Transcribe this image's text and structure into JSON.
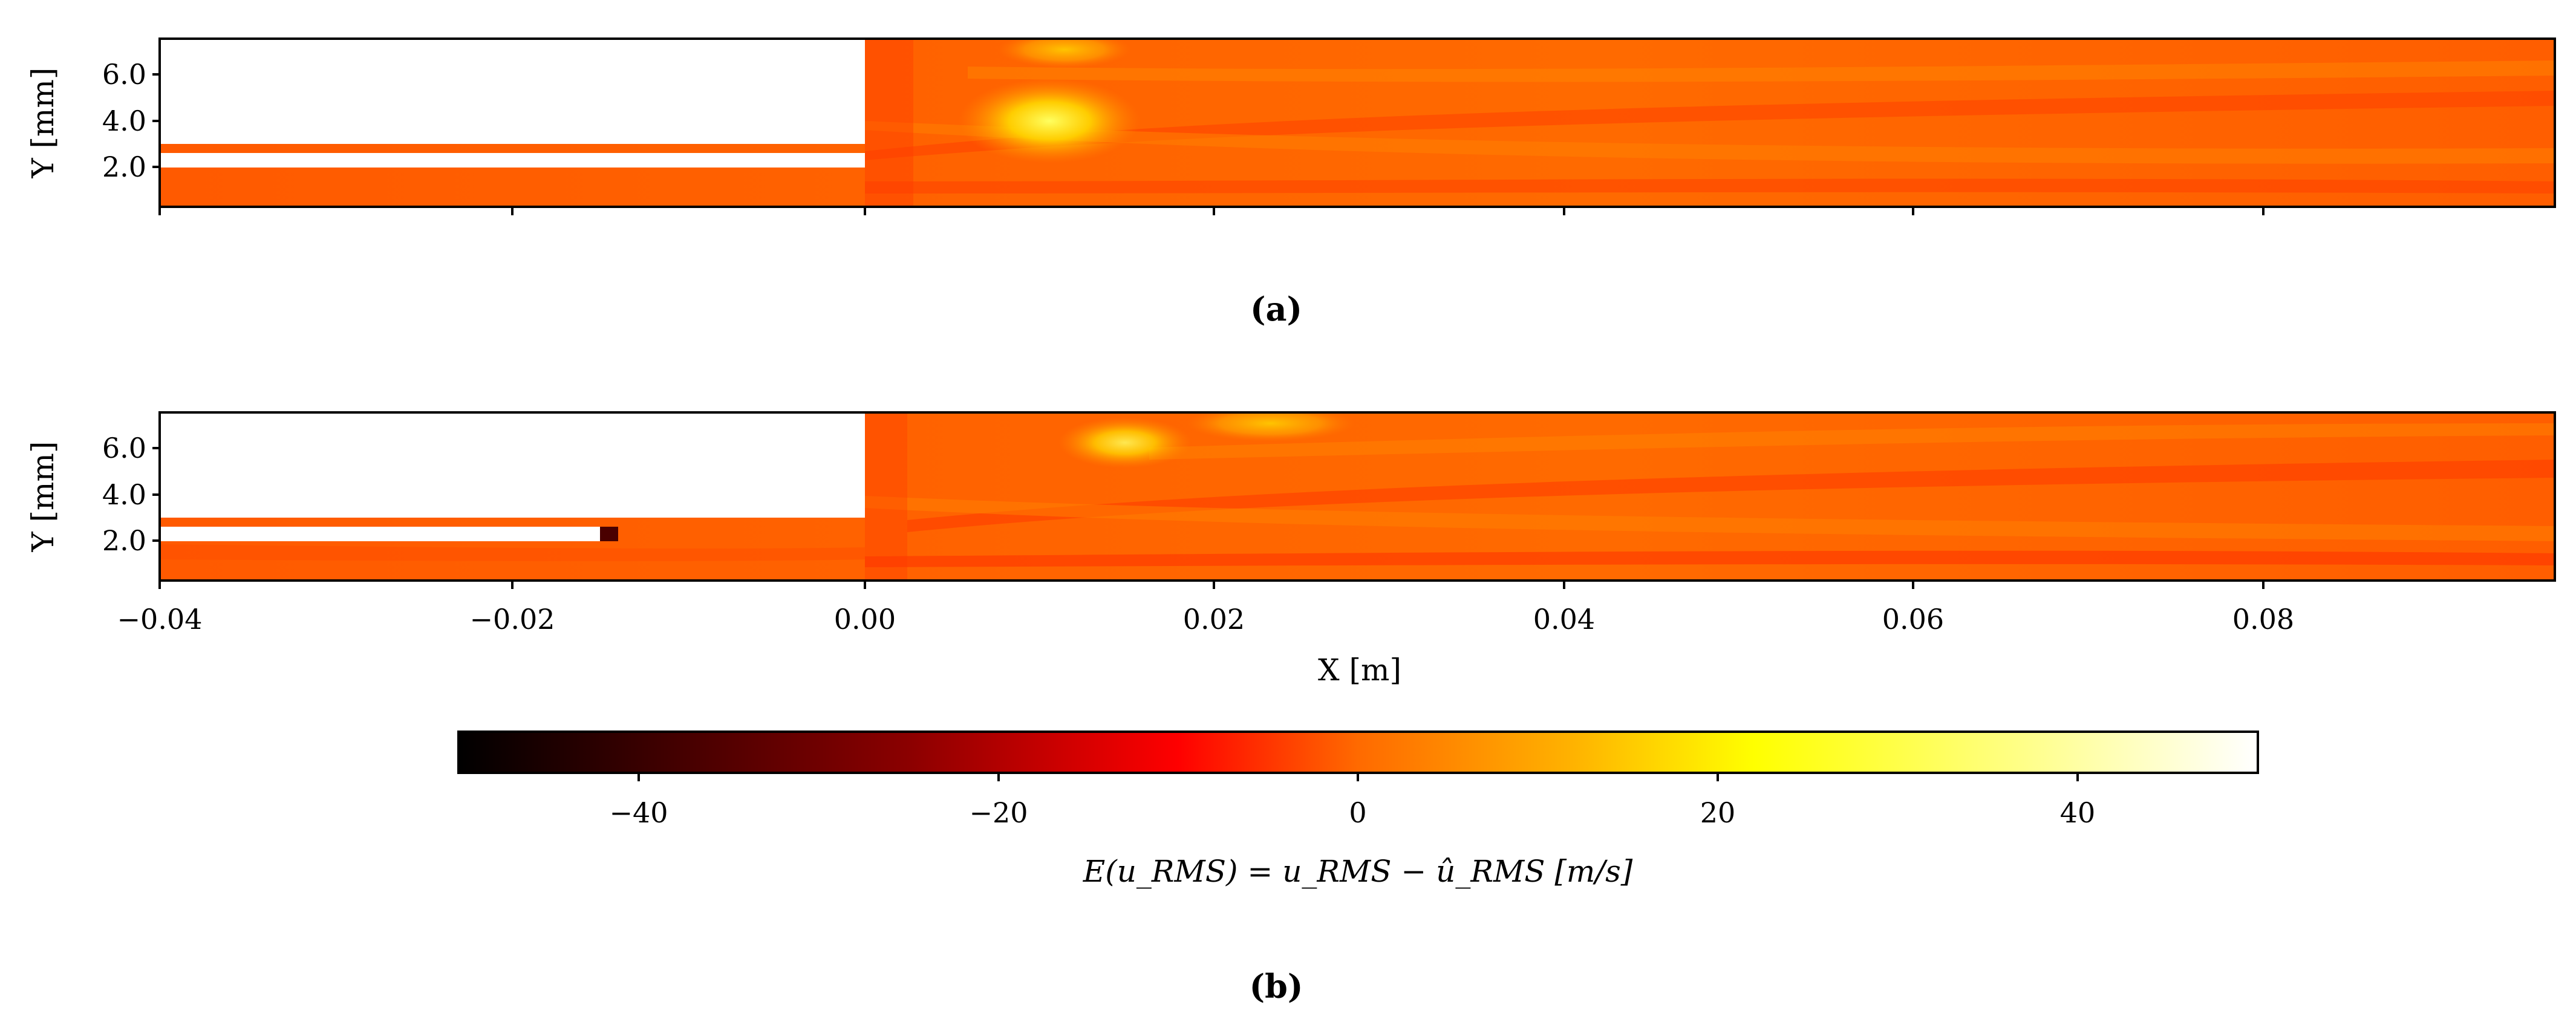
{
  "chart_data": [
    {
      "type": "heatmap",
      "panel": "a",
      "caption": "(a)",
      "xlim": [
        -0.04,
        0.097
      ],
      "ylim": [
        0.0,
        7.5
      ],
      "ylabel": "Y [mm]",
      "xlabel": "",
      "yticks": [
        2.0,
        4.0,
        6.0
      ],
      "ytick_labels": [
        "2.0",
        "4.0",
        "6.0"
      ],
      "xticks": [
        -0.04,
        -0.02,
        0.0,
        0.02,
        0.04,
        0.06,
        0.08
      ],
      "xtick_labels_shown": false,
      "masked_regions": [
        {
          "x": [
            -0.04,
            0.0
          ],
          "y": [
            3.1,
            7.5
          ]
        },
        {
          "x": [
            -0.04,
            0.0
          ],
          "y": [
            2.0,
            2.4
          ]
        }
      ],
      "hotspots": [
        {
          "x": 0.01,
          "y": 4.0,
          "value": 30
        },
        {
          "x": 0.012,
          "y": 6.8,
          "value": 15
        }
      ],
      "background_value": -5
    },
    {
      "type": "heatmap",
      "panel": "b",
      "caption": "(b)",
      "xlim": [
        -0.04,
        0.097
      ],
      "ylim": [
        0.0,
        7.5
      ],
      "ylabel": "Y [mm]",
      "xlabel": "X [m]",
      "yticks": [
        2.0,
        4.0,
        6.0
      ],
      "ytick_labels": [
        "2.0",
        "4.0",
        "6.0"
      ],
      "xticks": [
        -0.04,
        -0.02,
        0.0,
        0.02,
        0.04,
        0.06,
        0.08
      ],
      "xtick_labels": [
        "−0.04",
        "−0.02",
        "0.00",
        "0.02",
        "0.04",
        "0.06",
        "0.08"
      ],
      "masked_regions": [
        {
          "x": [
            -0.04,
            0.0
          ],
          "y": [
            3.1,
            7.5
          ]
        },
        {
          "x": [
            -0.04,
            -0.015
          ],
          "y": [
            2.0,
            2.4
          ]
        }
      ],
      "hotspots": [
        {
          "x": 0.014,
          "y": 6.3,
          "value": 22
        },
        {
          "x": 0.025,
          "y": 6.8,
          "value": 8
        }
      ],
      "background_value": -5
    }
  ],
  "colorbar": {
    "colormap": "hot",
    "vmin": -50,
    "vmax": 50,
    "ticks": [
      -40,
      -20,
      0,
      20,
      40
    ],
    "tick_labels": [
      "−40",
      "−20",
      "0",
      "20",
      "40"
    ],
    "label": "E(u_RMS) = u_RMS − û_RMS [m/s]",
    "stops": [
      "#000000",
      "#8b0000",
      "#ff0000",
      "#ff6a00",
      "#ffb300",
      "#ffff00",
      "#ffffff"
    ]
  },
  "labels": {
    "y_axis_a": "Y [mm]",
    "y_axis_b": "Y [mm]",
    "x_axis": "X [m]",
    "caption_a": "(a)",
    "caption_b": "(b)",
    "colorbar_label": "E(u_RMS) = u_RMS − û_RMS [m/s]"
  }
}
